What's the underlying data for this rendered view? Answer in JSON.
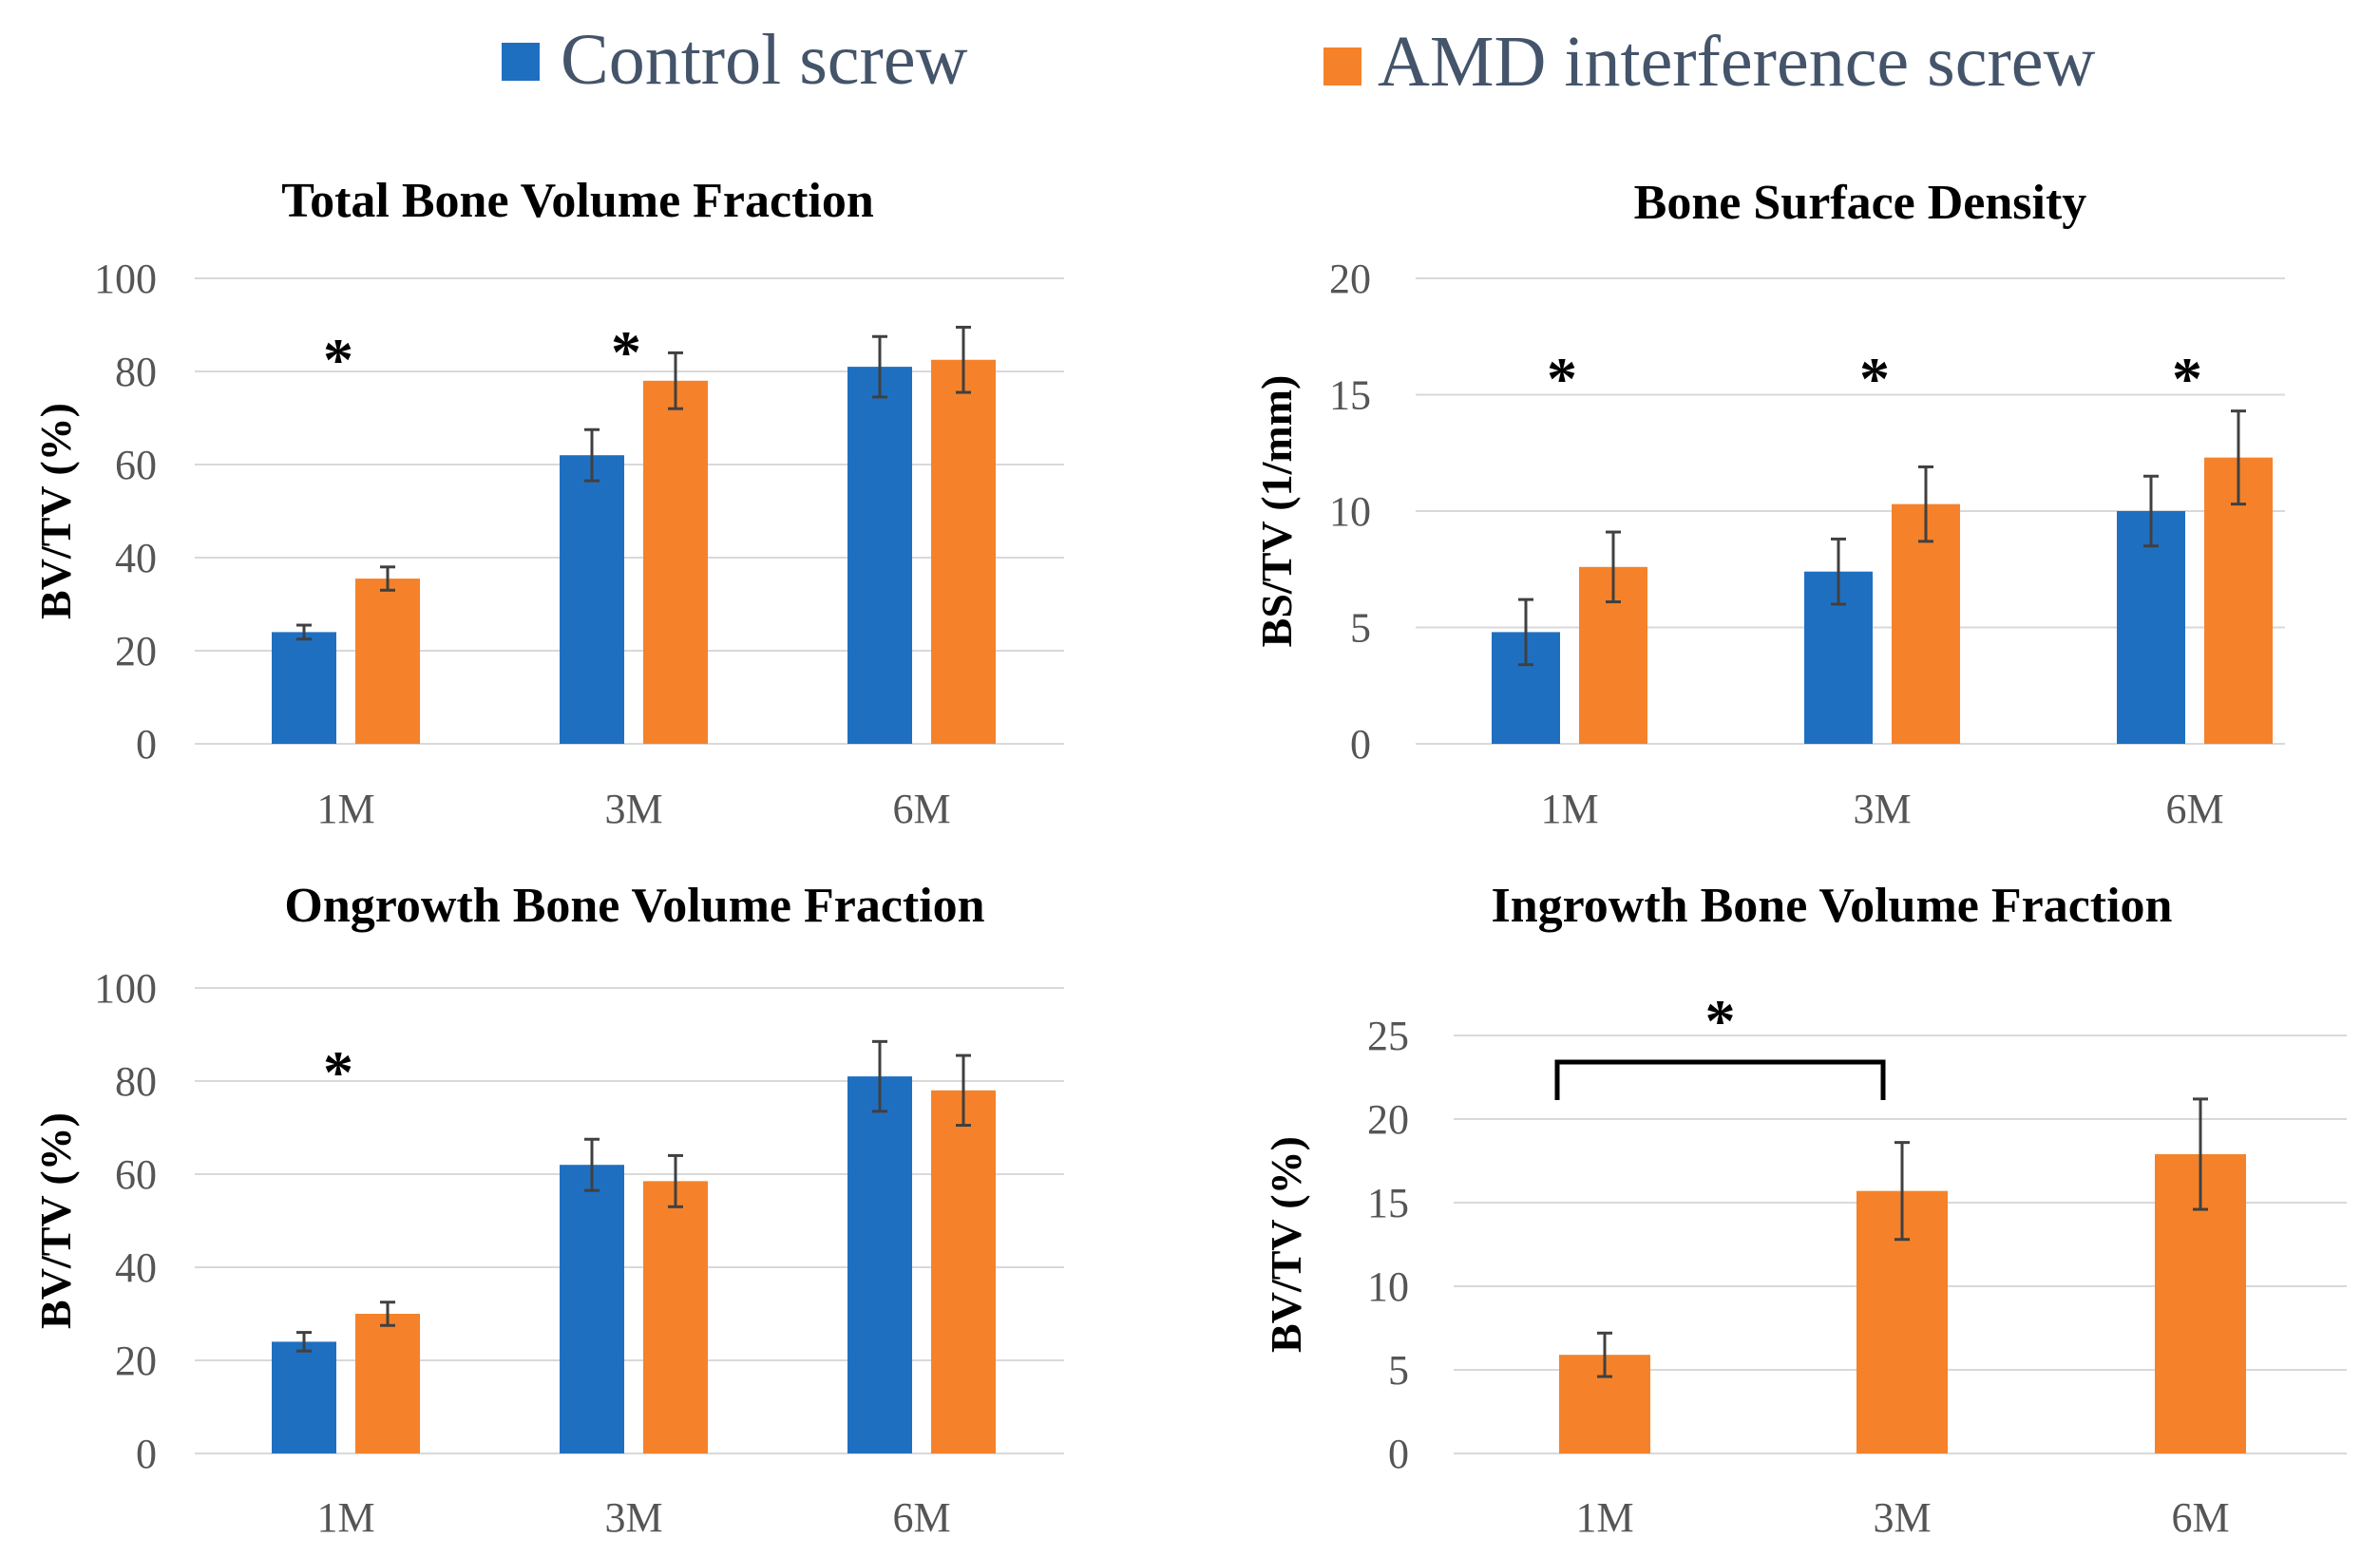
{
  "legend": {
    "items": [
      {
        "label": "Control screw",
        "color": "#1F6FC1"
      },
      {
        "label": "AMD interference screw",
        "color": "#F5822A"
      }
    ]
  },
  "colors": {
    "control": "#1F6FC1",
    "amd": "#F5822A",
    "grid": "#D9D9D9",
    "error_bar": "#404040"
  },
  "chart_data": [
    {
      "type": "bar",
      "title": "Total Bone Volume Fraction",
      "ylabel": "BV/TV (%)",
      "xlabel": "",
      "categories": [
        "1M",
        "3M",
        "6M"
      ],
      "ylim": [
        0,
        100
      ],
      "yticks": [
        0,
        20,
        40,
        60,
        80,
        100
      ],
      "series": [
        {
          "name": "Control screw",
          "values": [
            24,
            62,
            81
          ],
          "errors": [
            1.5,
            5.5,
            6.5
          ]
        },
        {
          "name": "AMD interference screw",
          "values": [
            35.5,
            78,
            82.5
          ],
          "errors": [
            2.5,
            6,
            7
          ]
        }
      ],
      "annotations": [
        {
          "text": "*",
          "category": "1M"
        },
        {
          "text": "*",
          "category": "3M"
        }
      ]
    },
    {
      "type": "bar",
      "title": "Bone Surface Density",
      "ylabel": "BS/TV (1/mm)",
      "xlabel": "",
      "categories": [
        "1M",
        "3M",
        "6M"
      ],
      "ylim": [
        0,
        20
      ],
      "yticks": [
        0,
        5,
        10,
        15,
        20
      ],
      "series": [
        {
          "name": "Control screw",
          "values": [
            4.8,
            7.4,
            10.0
          ],
          "errors": [
            1.4,
            1.4,
            1.5
          ]
        },
        {
          "name": "AMD interference screw",
          "values": [
            7.6,
            10.3,
            12.3
          ],
          "errors": [
            1.5,
            1.6,
            2.0
          ]
        }
      ],
      "annotations": [
        {
          "text": "*",
          "category": "1M"
        },
        {
          "text": "*",
          "category": "3M"
        },
        {
          "text": "*",
          "category": "6M"
        }
      ]
    },
    {
      "type": "bar",
      "title": "Ongrowth Bone Volume Fraction",
      "ylabel": "BV/TV (%)",
      "xlabel": "",
      "categories": [
        "1M",
        "3M",
        "6M"
      ],
      "ylim": [
        0,
        100
      ],
      "yticks": [
        0,
        20,
        40,
        60,
        80,
        100
      ],
      "series": [
        {
          "name": "Control screw",
          "values": [
            24,
            62,
            81
          ],
          "errors": [
            2,
            5.5,
            7.5
          ]
        },
        {
          "name": "AMD interference screw",
          "values": [
            30,
            58.5,
            78
          ],
          "errors": [
            2.5,
            5.5,
            7.5
          ]
        }
      ],
      "annotations": [
        {
          "text": "*",
          "category": "1M"
        }
      ]
    },
    {
      "type": "bar",
      "title": "Ingrowth Bone Volume Fraction",
      "ylabel": "BV/TV (%)",
      "xlabel": "",
      "categories": [
        "1M",
        "3M",
        "6M"
      ],
      "ylim": [
        0,
        25
      ],
      "yticks": [
        0,
        5,
        10,
        15,
        20,
        25
      ],
      "series": [
        {
          "name": "AMD interference screw",
          "values": [
            5.9,
            15.7,
            17.9
          ],
          "errors": [
            1.3,
            2.9,
            3.3
          ]
        }
      ],
      "annotations": [
        {
          "text": "*",
          "bracket": [
            "1M",
            "3M"
          ]
        }
      ]
    }
  ]
}
